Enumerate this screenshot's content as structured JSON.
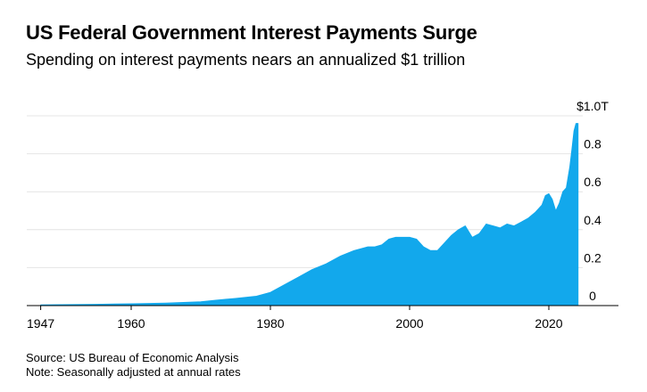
{
  "title": "US Federal Government Interest Payments Surge",
  "subtitle": "Spending on interest payments nears an annualized $1 trillion",
  "source": "Source: US Bureau of Economic Analysis",
  "note": "Note: Seasonally adjusted at annual rates",
  "colors": {
    "area": "#12a8ec",
    "grid": "#e4e4e4",
    "axis": "#000000"
  },
  "chart_data": {
    "type": "area",
    "title": "US Federal Government Interest Payments Surge",
    "subtitle": "Spending on interest payments nears an annualized $1 trillion",
    "xlabel": "",
    "ylabel": "",
    "xlim": [
      1945,
      2030
    ],
    "ylim": [
      0,
      1.0
    ],
    "x_ticks": [
      1947,
      1960,
      1980,
      2000,
      2020
    ],
    "x_tick_labels": [
      "1947",
      "1960",
      "1980",
      "2000",
      "2020"
    ],
    "y_ticks": [
      0,
      0.2,
      0.4,
      0.6,
      0.8,
      1.0
    ],
    "y_tick_labels": [
      "0",
      "0.2",
      "0.4",
      "0.6",
      "0.8",
      "$1.0T"
    ],
    "grid": true,
    "legend": "none",
    "series": [
      {
        "x": [
          1947,
          1950,
          1955,
          1960,
          1965,
          1970,
          1972,
          1975,
          1978,
          1980,
          1982,
          1984,
          1986,
          1988,
          1990,
          1992,
          1994,
          1995,
          1996,
          1997,
          1998,
          1999,
          2000,
          2001,
          2002,
          2003,
          2004,
          2005,
          2006,
          2007,
          2008,
          2009,
          2010,
          2011,
          2012,
          2013,
          2014,
          2015,
          2016,
          2017,
          2018,
          2019,
          2019.5,
          2020,
          2020.5,
          2021,
          2021.5,
          2022,
          2022.5,
          2023,
          2023.3,
          2023.6,
          2023.9,
          2024.2
        ],
        "values": [
          0.004,
          0.005,
          0.007,
          0.01,
          0.013,
          0.02,
          0.028,
          0.038,
          0.05,
          0.07,
          0.11,
          0.15,
          0.19,
          0.22,
          0.26,
          0.29,
          0.31,
          0.31,
          0.32,
          0.35,
          0.36,
          0.36,
          0.36,
          0.35,
          0.31,
          0.29,
          0.29,
          0.33,
          0.37,
          0.4,
          0.42,
          0.36,
          0.38,
          0.43,
          0.42,
          0.41,
          0.43,
          0.42,
          0.44,
          0.46,
          0.49,
          0.53,
          0.58,
          0.59,
          0.56,
          0.5,
          0.54,
          0.6,
          0.62,
          0.73,
          0.82,
          0.92,
          0.96,
          0.96
        ]
      }
    ]
  }
}
